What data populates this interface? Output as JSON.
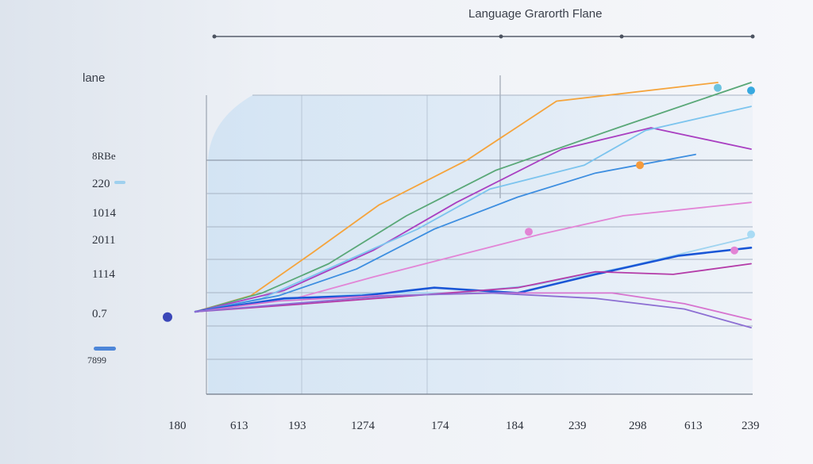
{
  "chart_data": {
    "type": "line",
    "title": "Language Grarorth Flane",
    "ylabel": "lane",
    "xlabel": "",
    "x_ticks": [
      "180",
      "613",
      "193",
      "1274",
      "174",
      "184",
      "239",
      "298",
      "613",
      "239"
    ],
    "y_ticks": [
      "0.7",
      "1114",
      "2011",
      "1014",
      "220",
      "8RBe",
      "7899"
    ],
    "ylim": [
      0,
      100
    ],
    "xlim": [
      0,
      100
    ],
    "grid": true,
    "legend": "none",
    "series": [
      {
        "color": "#f5a43c",
        "points": [
          [
            0,
            14
          ],
          [
            10,
            20
          ],
          [
            21,
            36
          ],
          [
            33,
            54
          ],
          [
            49,
            71
          ],
          [
            65,
            93
          ],
          [
            94,
            100
          ]
        ]
      },
      {
        "color": "#5aa878",
        "points": [
          [
            0,
            14
          ],
          [
            12,
            21
          ],
          [
            24,
            32
          ],
          [
            38,
            50
          ],
          [
            54,
            67
          ],
          [
            76,
            83
          ],
          [
            100,
            100
          ]
        ]
      },
      {
        "color": "#a93fc1",
        "points": [
          [
            0,
            14
          ],
          [
            16,
            22
          ],
          [
            32,
            37
          ],
          [
            47,
            55
          ],
          [
            66,
            75
          ],
          [
            82,
            83
          ],
          [
            100,
            75
          ]
        ]
      },
      {
        "color": "#7cc4ee",
        "points": [
          [
            0,
            14
          ],
          [
            12,
            19
          ],
          [
            26,
            32
          ],
          [
            40,
            45
          ],
          [
            53,
            60
          ],
          [
            70,
            69
          ],
          [
            81,
            82
          ],
          [
            100,
            91
          ]
        ]
      },
      {
        "color": "#3d8ee0",
        "points": [
          [
            0,
            14
          ],
          [
            15,
            20
          ],
          [
            29,
            30
          ],
          [
            43,
            45
          ],
          [
            58,
            57
          ],
          [
            72,
            66
          ],
          [
            90,
            73
          ]
        ]
      },
      {
        "color": "#e285d6",
        "points": [
          [
            0,
            14
          ],
          [
            18,
            19
          ],
          [
            32,
            27
          ],
          [
            47,
            35
          ],
          [
            62,
            43
          ],
          [
            77,
            50
          ],
          [
            100,
            55
          ]
        ]
      },
      {
        "color": "#9fd4f0",
        "points": [
          [
            0,
            14
          ],
          [
            18,
            19
          ],
          [
            33,
            21
          ],
          [
            47,
            21
          ],
          [
            61,
            24
          ],
          [
            78,
            31
          ],
          [
            100,
            42
          ]
        ]
      },
      {
        "color": "#1a56d6",
        "points": [
          [
            0,
            14
          ],
          [
            16,
            19
          ],
          [
            30,
            20
          ],
          [
            43,
            23
          ],
          [
            58,
            21
          ],
          [
            72,
            28
          ],
          [
            87,
            35
          ],
          [
            100,
            38
          ]
        ]
      },
      {
        "color": "#b43ba8",
        "points": [
          [
            0,
            14
          ],
          [
            20,
            17
          ],
          [
            39,
            20
          ],
          [
            58,
            23
          ],
          [
            72,
            29
          ],
          [
            86,
            28
          ],
          [
            100,
            32
          ]
        ]
      },
      {
        "color": "#d774cf",
        "points": [
          [
            0,
            14
          ],
          [
            15,
            18
          ],
          [
            33,
            20
          ],
          [
            55,
            21
          ],
          [
            75,
            21
          ],
          [
            88,
            17
          ],
          [
            100,
            11
          ]
        ]
      },
      {
        "color": "#8d6fd3",
        "points": [
          [
            0,
            14
          ],
          [
            17,
            17
          ],
          [
            35,
            20
          ],
          [
            53,
            21
          ],
          [
            72,
            19
          ],
          [
            88,
            15
          ],
          [
            100,
            8
          ]
        ]
      }
    ],
    "markers": [
      {
        "color": "#6cc3df",
        "x": 94,
        "y": 98
      },
      {
        "color": "#38a9e0",
        "x": 100,
        "y": 97
      },
      {
        "color": "#f59a3a",
        "x": 80,
        "y": 69
      },
      {
        "color": "#e284d5",
        "x": 60,
        "y": 44
      },
      {
        "color": "#a9dbf4",
        "x": 100,
        "y": 43
      },
      {
        "color": "#e284d5",
        "x": 97,
        "y": 37
      },
      {
        "color": "#3b47b8",
        "x": -5,
        "y": 12
      }
    ]
  }
}
